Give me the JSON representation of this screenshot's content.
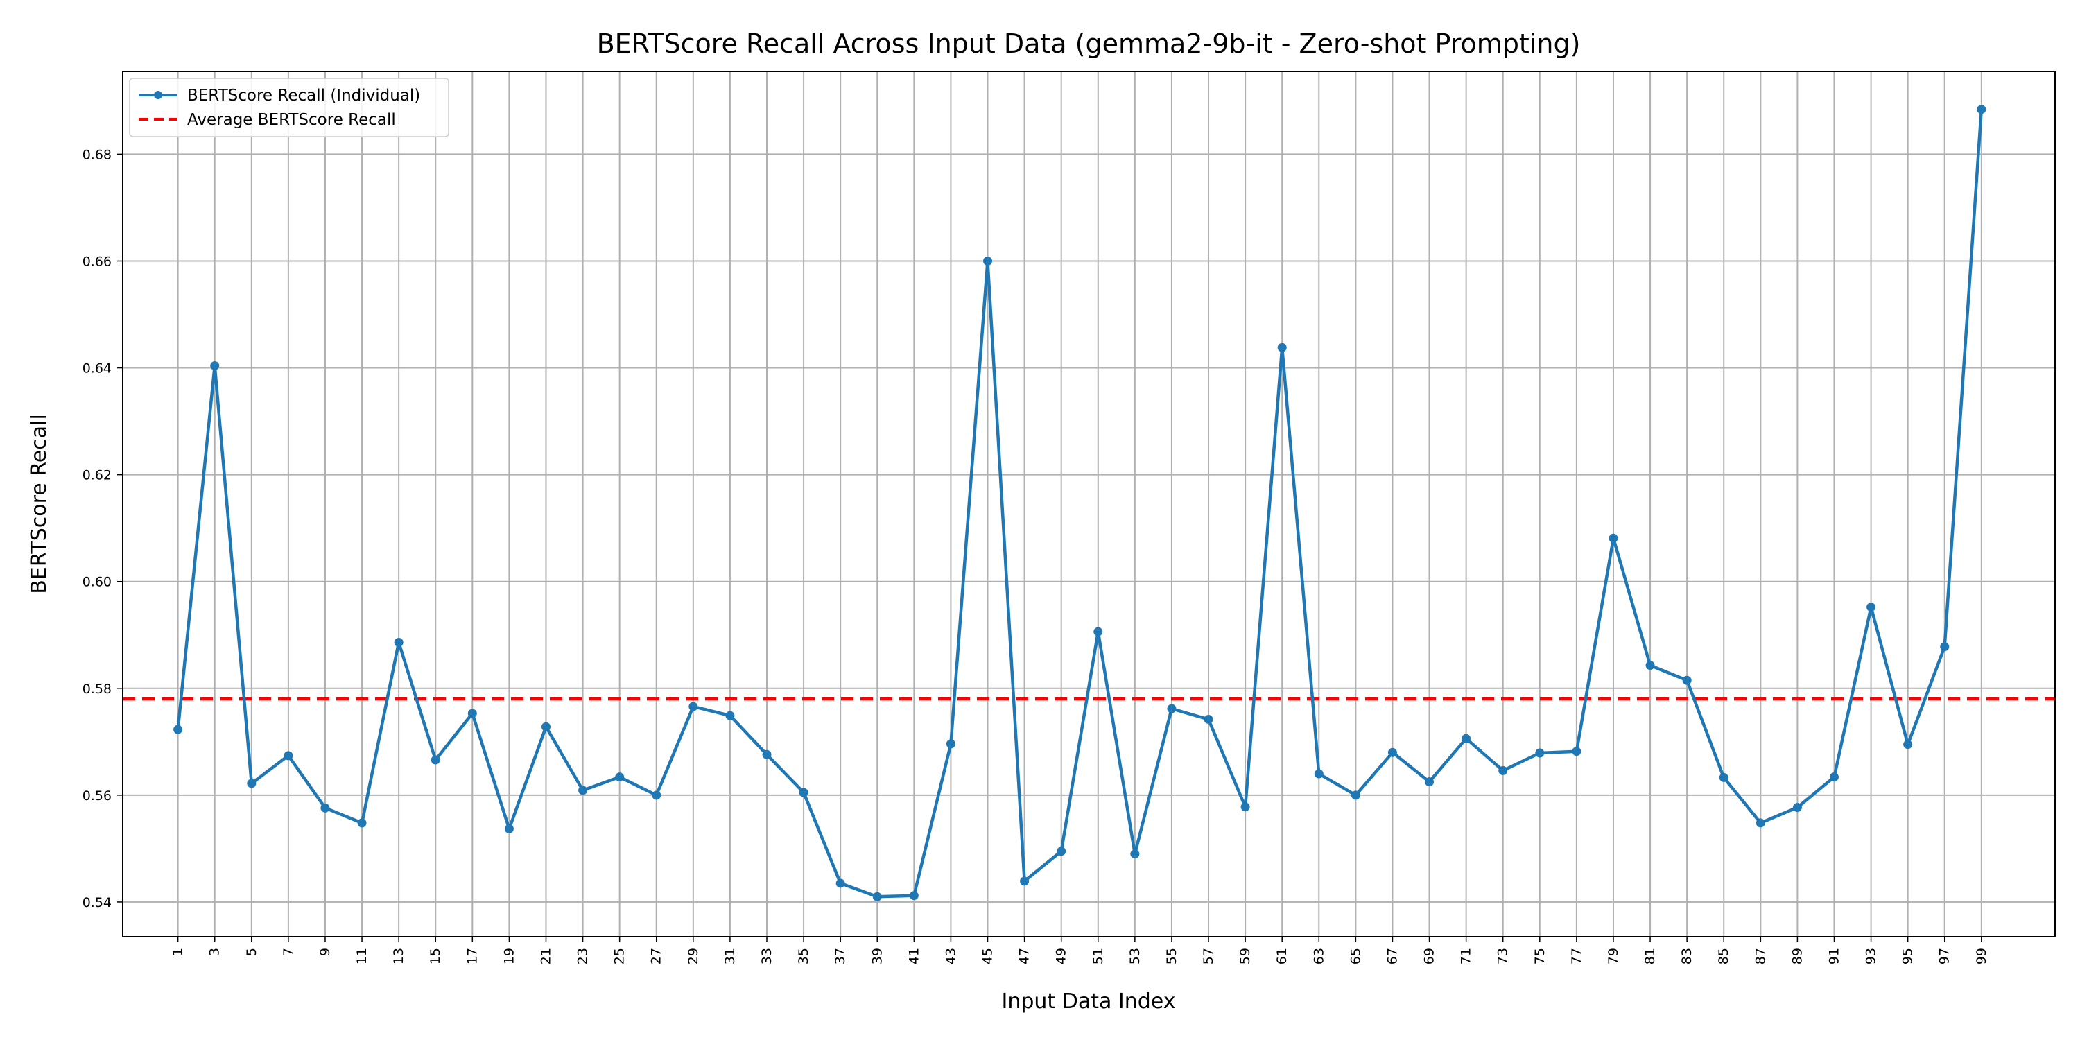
{
  "chart_data": {
    "type": "line",
    "title": "BERTScore Recall Across Input Data (gemma2-9b-it - Zero-shot Prompting)",
    "xlabel": "Input Data Index",
    "ylabel": "BERTScore Recall",
    "xlim": [
      -2,
      103
    ],
    "ylim": [
      0.5335,
      0.6955
    ],
    "grid": true,
    "legend_position": "top-left",
    "x": [
      1,
      3,
      5,
      7,
      9,
      11,
      13,
      15,
      17,
      19,
      21,
      23,
      25,
      27,
      29,
      31,
      33,
      35,
      37,
      39,
      41,
      43,
      45,
      47,
      49,
      51,
      53,
      55,
      57,
      59,
      61,
      63,
      65,
      67,
      69,
      71,
      73,
      75,
      77,
      79,
      81,
      83,
      85,
      87,
      89,
      91,
      93,
      95,
      97,
      99
    ],
    "x_tick_labels": [
      "1",
      "3",
      "5",
      "7",
      "9",
      "11",
      "13",
      "15",
      "17",
      "19",
      "21",
      "23",
      "25",
      "27",
      "29",
      "31",
      "33",
      "35",
      "37",
      "39",
      "41",
      "43",
      "45",
      "47",
      "49",
      "51",
      "53",
      "55",
      "57",
      "59",
      "61",
      "63",
      "65",
      "67",
      "69",
      "71",
      "73",
      "75",
      "77",
      "79",
      "81",
      "83",
      "85",
      "87",
      "89",
      "91",
      "93",
      "95",
      "97",
      "99"
    ],
    "y_ticks": [
      0.54,
      0.56,
      0.58,
      0.6,
      0.62,
      0.64,
      0.66,
      0.68
    ],
    "y_tick_labels": [
      "0.54",
      "0.56",
      "0.58",
      "0.60",
      "0.62",
      "0.64",
      "0.66",
      "0.68"
    ],
    "series": [
      {
        "name": "BERTScore Recall (Individual)",
        "color": "#1f77b4",
        "style": "solid-line-with-markers",
        "values": [
          0.5723,
          0.6404,
          0.5622,
          0.5674,
          0.5576,
          0.5548,
          0.5886,
          0.5666,
          0.5753,
          0.5537,
          0.5728,
          0.5609,
          0.5634,
          0.56,
          0.5766,
          0.5749,
          0.5676,
          0.5605,
          0.5435,
          0.541,
          0.5412,
          0.5696,
          0.66,
          0.5439,
          0.5495,
          0.5906,
          0.549,
          0.5762,
          0.5742,
          0.5578,
          0.6438,
          0.564,
          0.56,
          0.568,
          0.5625,
          0.5706,
          0.5646,
          0.5679,
          0.5682,
          0.6081,
          0.5843,
          0.5815,
          0.5633,
          0.5548,
          0.5577,
          0.5634,
          0.5952,
          0.5695,
          0.5878,
          0.6884
        ]
      },
      {
        "name": "Average BERTScore Recall",
        "color": "#ff0000",
        "style": "dashed-horizontal",
        "value": 0.578
      }
    ]
  }
}
